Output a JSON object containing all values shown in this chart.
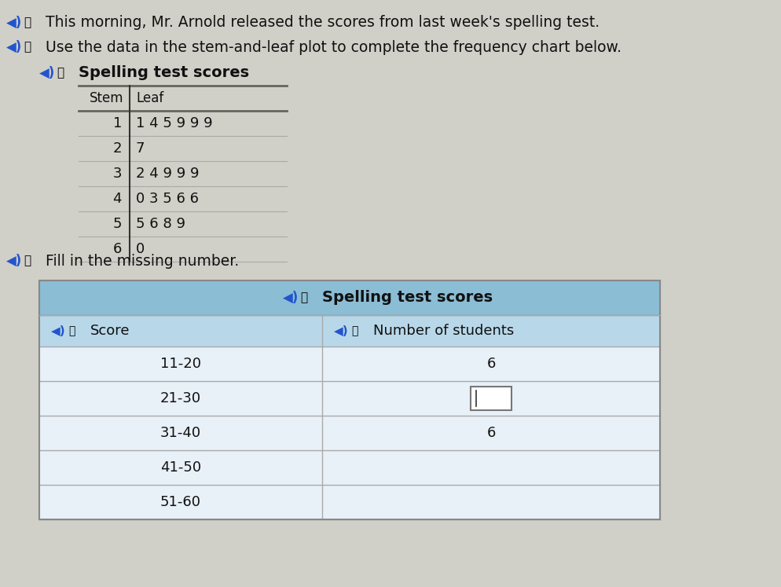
{
  "title_line1": "This morning, Mr. Arnold released the scores from last week's spelling test.",
  "title_line2": "Use the data in the stem-and-leaf plot to complete the frequency chart below.",
  "stem_leaf_title": "Spelling test scores",
  "stem_data": [
    {
      "stem": "1",
      "leaf": "1 4 5 9 9 9"
    },
    {
      "stem": "2",
      "leaf": "7"
    },
    {
      "stem": "3",
      "leaf": "2 4 9 9 9"
    },
    {
      "stem": "4",
      "leaf": "0 3 5 6 6"
    },
    {
      "stem": "5",
      "leaf": "5 6 8 9"
    },
    {
      "stem": "6",
      "leaf": "0"
    }
  ],
  "fill_instruction": "Fill in the missing number.",
  "freq_table_title": "Spelling test scores",
  "freq_col1": "Score",
  "freq_col2": "Number of students",
  "freq_rows": [
    {
      "score": "11-20",
      "count": "6",
      "is_blank": false
    },
    {
      "score": "21-30",
      "count": "",
      "is_blank": true
    },
    {
      "score": "31-40",
      "count": "6",
      "is_blank": false
    },
    {
      "score": "41-50",
      "count": "",
      "is_blank": false
    },
    {
      "score": "51-60",
      "count": "",
      "is_blank": false
    }
  ],
  "page_bg": "#d0cfc8",
  "table_header_bg": "#8bbdd4",
  "table_subheader_bg": "#b8d8ea",
  "table_row_bg": "#e8f0f8",
  "icon_speaker_color": "#2255cc",
  "icon_fish_color": "#44aa44",
  "text_color": "#000000",
  "stem_top_line_color": "#888880",
  "stem_header_line_color": "#555550",
  "freq_border_color": "#999999"
}
